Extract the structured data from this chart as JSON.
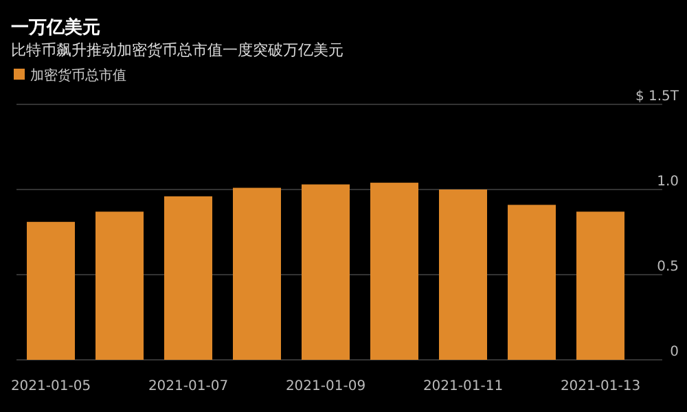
{
  "chart_data": {
    "type": "bar",
    "title": "一万亿美元",
    "subtitle": "比特币飙升推动加密货币总市值一度突破万亿美元",
    "categories": [
      "2021-01-05",
      null,
      "2021-01-07",
      null,
      "2021-01-09",
      null,
      "2021-01-11",
      null,
      "2021-01-13"
    ],
    "series": [
      {
        "name": "加密货币总市值",
        "color": "#e0892a",
        "values": [
          0.81,
          0.87,
          0.96,
          1.01,
          1.03,
          1.04,
          1.0,
          0.91,
          0.87
        ]
      }
    ],
    "ylim": [
      0,
      1.5
    ],
    "yticks": [
      0,
      0.5,
      {
        "value": 1.0,
        "label": "1.0"
      },
      {
        "value": 1.5,
        "label": "$ 1.5T"
      }
    ],
    "grid": "y",
    "legend": "top left"
  }
}
